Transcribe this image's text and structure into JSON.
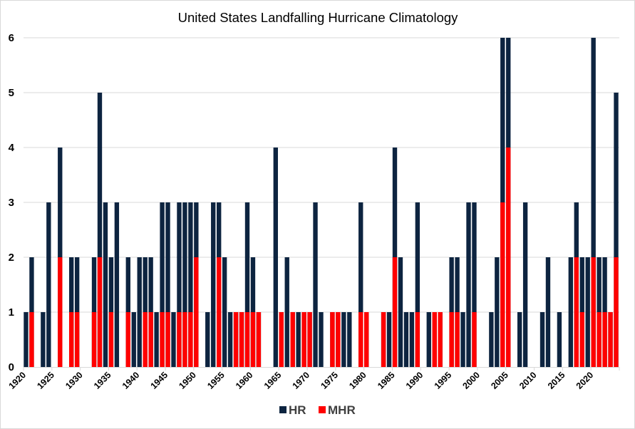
{
  "chart_data": {
    "type": "bar",
    "title": "United States Landfalling Hurricane Climatology",
    "xlabel": "",
    "ylabel": "",
    "ylim": [
      0,
      6
    ],
    "yticks": [
      0,
      1,
      2,
      3,
      4,
      5,
      6
    ],
    "xtick_labels": [
      "1920",
      "1925",
      "1930",
      "1935",
      "1940",
      "1945",
      "1950",
      "1955",
      "1960",
      "1965",
      "1970",
      "1975",
      "1980",
      "1985",
      "1990",
      "1995",
      "2000",
      "2005",
      "2010",
      "2015",
      "2020"
    ],
    "grid": true,
    "legend_position": "bottom",
    "overlay": "MHR drawn over HR (MHR is a subset of HR)",
    "x": [
      1920,
      1921,
      1922,
      1923,
      1924,
      1925,
      1926,
      1927,
      1928,
      1929,
      1930,
      1931,
      1932,
      1933,
      1934,
      1935,
      1936,
      1937,
      1938,
      1939,
      1940,
      1941,
      1942,
      1943,
      1944,
      1945,
      1946,
      1947,
      1948,
      1949,
      1950,
      1951,
      1952,
      1953,
      1954,
      1955,
      1956,
      1957,
      1958,
      1959,
      1960,
      1961,
      1962,
      1963,
      1964,
      1965,
      1966,
      1967,
      1968,
      1969,
      1970,
      1971,
      1972,
      1973,
      1974,
      1975,
      1976,
      1977,
      1978,
      1979,
      1980,
      1981,
      1982,
      1983,
      1984,
      1985,
      1986,
      1987,
      1988,
      1989,
      1990,
      1991,
      1992,
      1993,
      1994,
      1995,
      1996,
      1997,
      1998,
      1999,
      2000,
      2001,
      2002,
      2003,
      2004,
      2005,
      2006,
      2007,
      2008,
      2009,
      2010,
      2011,
      2012,
      2013,
      2014,
      2015,
      2016,
      2017,
      2018,
      2019,
      2020,
      2021,
      2022,
      2023,
      2024
    ],
    "series": [
      {
        "name": "HR",
        "color": "#0d2440",
        "values": [
          1,
          2,
          0,
          1,
          3,
          0,
          4,
          0,
          2,
          2,
          0,
          0,
          2,
          5,
          3,
          2,
          3,
          0,
          2,
          1,
          2,
          2,
          2,
          1,
          3,
          3,
          1,
          3,
          3,
          3,
          3,
          0,
          1,
          3,
          3,
          2,
          1,
          1,
          1,
          3,
          2,
          1,
          0,
          0,
          4,
          1,
          2,
          1,
          1,
          1,
          1,
          3,
          1,
          0,
          1,
          1,
          1,
          1,
          0,
          3,
          1,
          0,
          0,
          1,
          1,
          4,
          2,
          1,
          1,
          3,
          0,
          1,
          1,
          1,
          0,
          2,
          2,
          1,
          3,
          3,
          0,
          0,
          1,
          2,
          6,
          6,
          0,
          1,
          3,
          0,
          0,
          1,
          2,
          0,
          1,
          0,
          2,
          3,
          2,
          2,
          6,
          2,
          2,
          1,
          5
        ]
      },
      {
        "name": "MHR",
        "color": "#ff0000",
        "values": [
          0,
          1,
          0,
          0,
          0,
          0,
          2,
          0,
          1,
          1,
          0,
          0,
          1,
          2,
          0,
          1,
          0,
          0,
          1,
          0,
          0,
          1,
          1,
          0,
          1,
          1,
          0,
          1,
          1,
          1,
          2,
          0,
          0,
          0,
          2,
          0,
          0,
          1,
          1,
          1,
          1,
          1,
          0,
          0,
          0,
          1,
          0,
          1,
          0,
          1,
          1,
          0,
          0,
          0,
          1,
          1,
          0,
          0,
          0,
          1,
          1,
          0,
          0,
          1,
          0,
          2,
          0,
          0,
          0,
          1,
          0,
          0,
          1,
          1,
          0,
          1,
          1,
          0,
          0,
          1,
          0,
          0,
          0,
          0,
          3,
          4,
          0,
          0,
          0,
          0,
          0,
          0,
          0,
          0,
          0,
          0,
          0,
          2,
          1,
          0,
          2,
          1,
          1,
          1,
          2
        ]
      }
    ]
  }
}
